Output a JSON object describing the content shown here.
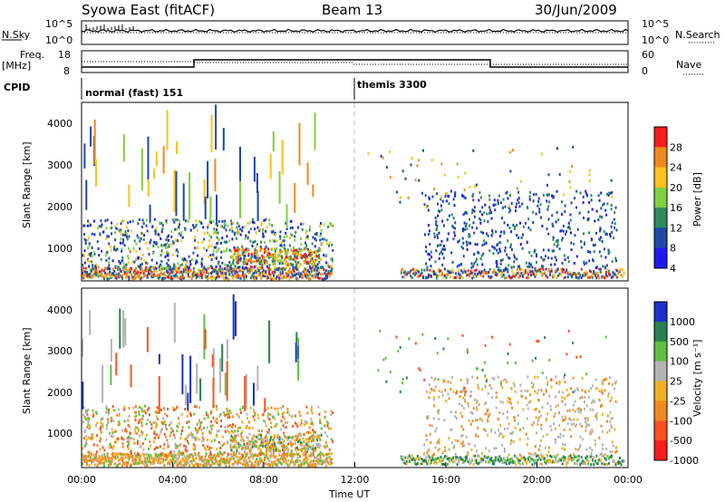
{
  "header": {
    "title": "Syowa East (fitACF)",
    "beam": "Beam 13",
    "date": "30/Jun/2009"
  },
  "side_labels": {
    "nsky": "N.Sky",
    "nsearch": "N.Search",
    "freq": "Freq.",
    "freq_unit": "[MHz]",
    "nave": "Nave",
    "cpid": "CPID"
  },
  "noise_axis": {
    "left_ticks": [
      "10^5",
      "10^0"
    ],
    "right_ticks": [
      "10^5",
      "10^0"
    ]
  },
  "freq_axis": {
    "left_ticks": [
      "18",
      "8"
    ],
    "right_ticks": [
      "60",
      "0"
    ]
  },
  "cpid": {
    "segments": [
      {
        "label": "normal (fast) 151",
        "start_hour": 0
      },
      {
        "label": "themis 3300",
        "start_hour": 12
      }
    ]
  },
  "chart_data": [
    {
      "type": "heatmap",
      "name": "power",
      "ylabel": "Slant Range [km]",
      "yticks": [
        "4000",
        "3000",
        "2000",
        "1000"
      ],
      "ylim": [
        180,
        4500
      ],
      "xlim_hours": [
        0,
        24
      ],
      "colorbar": {
        "label": "Power [dB]",
        "ticks": [
          "28",
          "24",
          "20",
          "16",
          "12",
          "8",
          "4"
        ],
        "colors": [
          "#ff1a1a",
          "#f08a1e",
          "#ffc21a",
          "#80d040",
          "#2e8a5e",
          "#1f48a8",
          "#1a1af0"
        ]
      }
    },
    {
      "type": "heatmap",
      "name": "velocity",
      "ylabel": "Slant Range [km]",
      "yticks": [
        "4000",
        "3000",
        "2000",
        "1000"
      ],
      "ylim": [
        180,
        4500
      ],
      "xlim_hours": [
        0,
        24
      ],
      "colorbar": {
        "label": "Velocity [m s⁻¹]",
        "ticks": [
          "1000",
          "500",
          "100",
          "25",
          "-25",
          "-100",
          "-500",
          "-1000"
        ],
        "colors": [
          "#1a32c8",
          "#2a8050",
          "#60c040",
          "#b4b4b4",
          "#f0b020",
          "#f08a1e",
          "#ff5020",
          "#ff1a1a"
        ]
      }
    }
  ],
  "x_axis": {
    "ticks": [
      "00:00",
      "04:00",
      "08:00",
      "12:00",
      "16:00",
      "20:00",
      "00:00"
    ],
    "label": "Time UT"
  }
}
